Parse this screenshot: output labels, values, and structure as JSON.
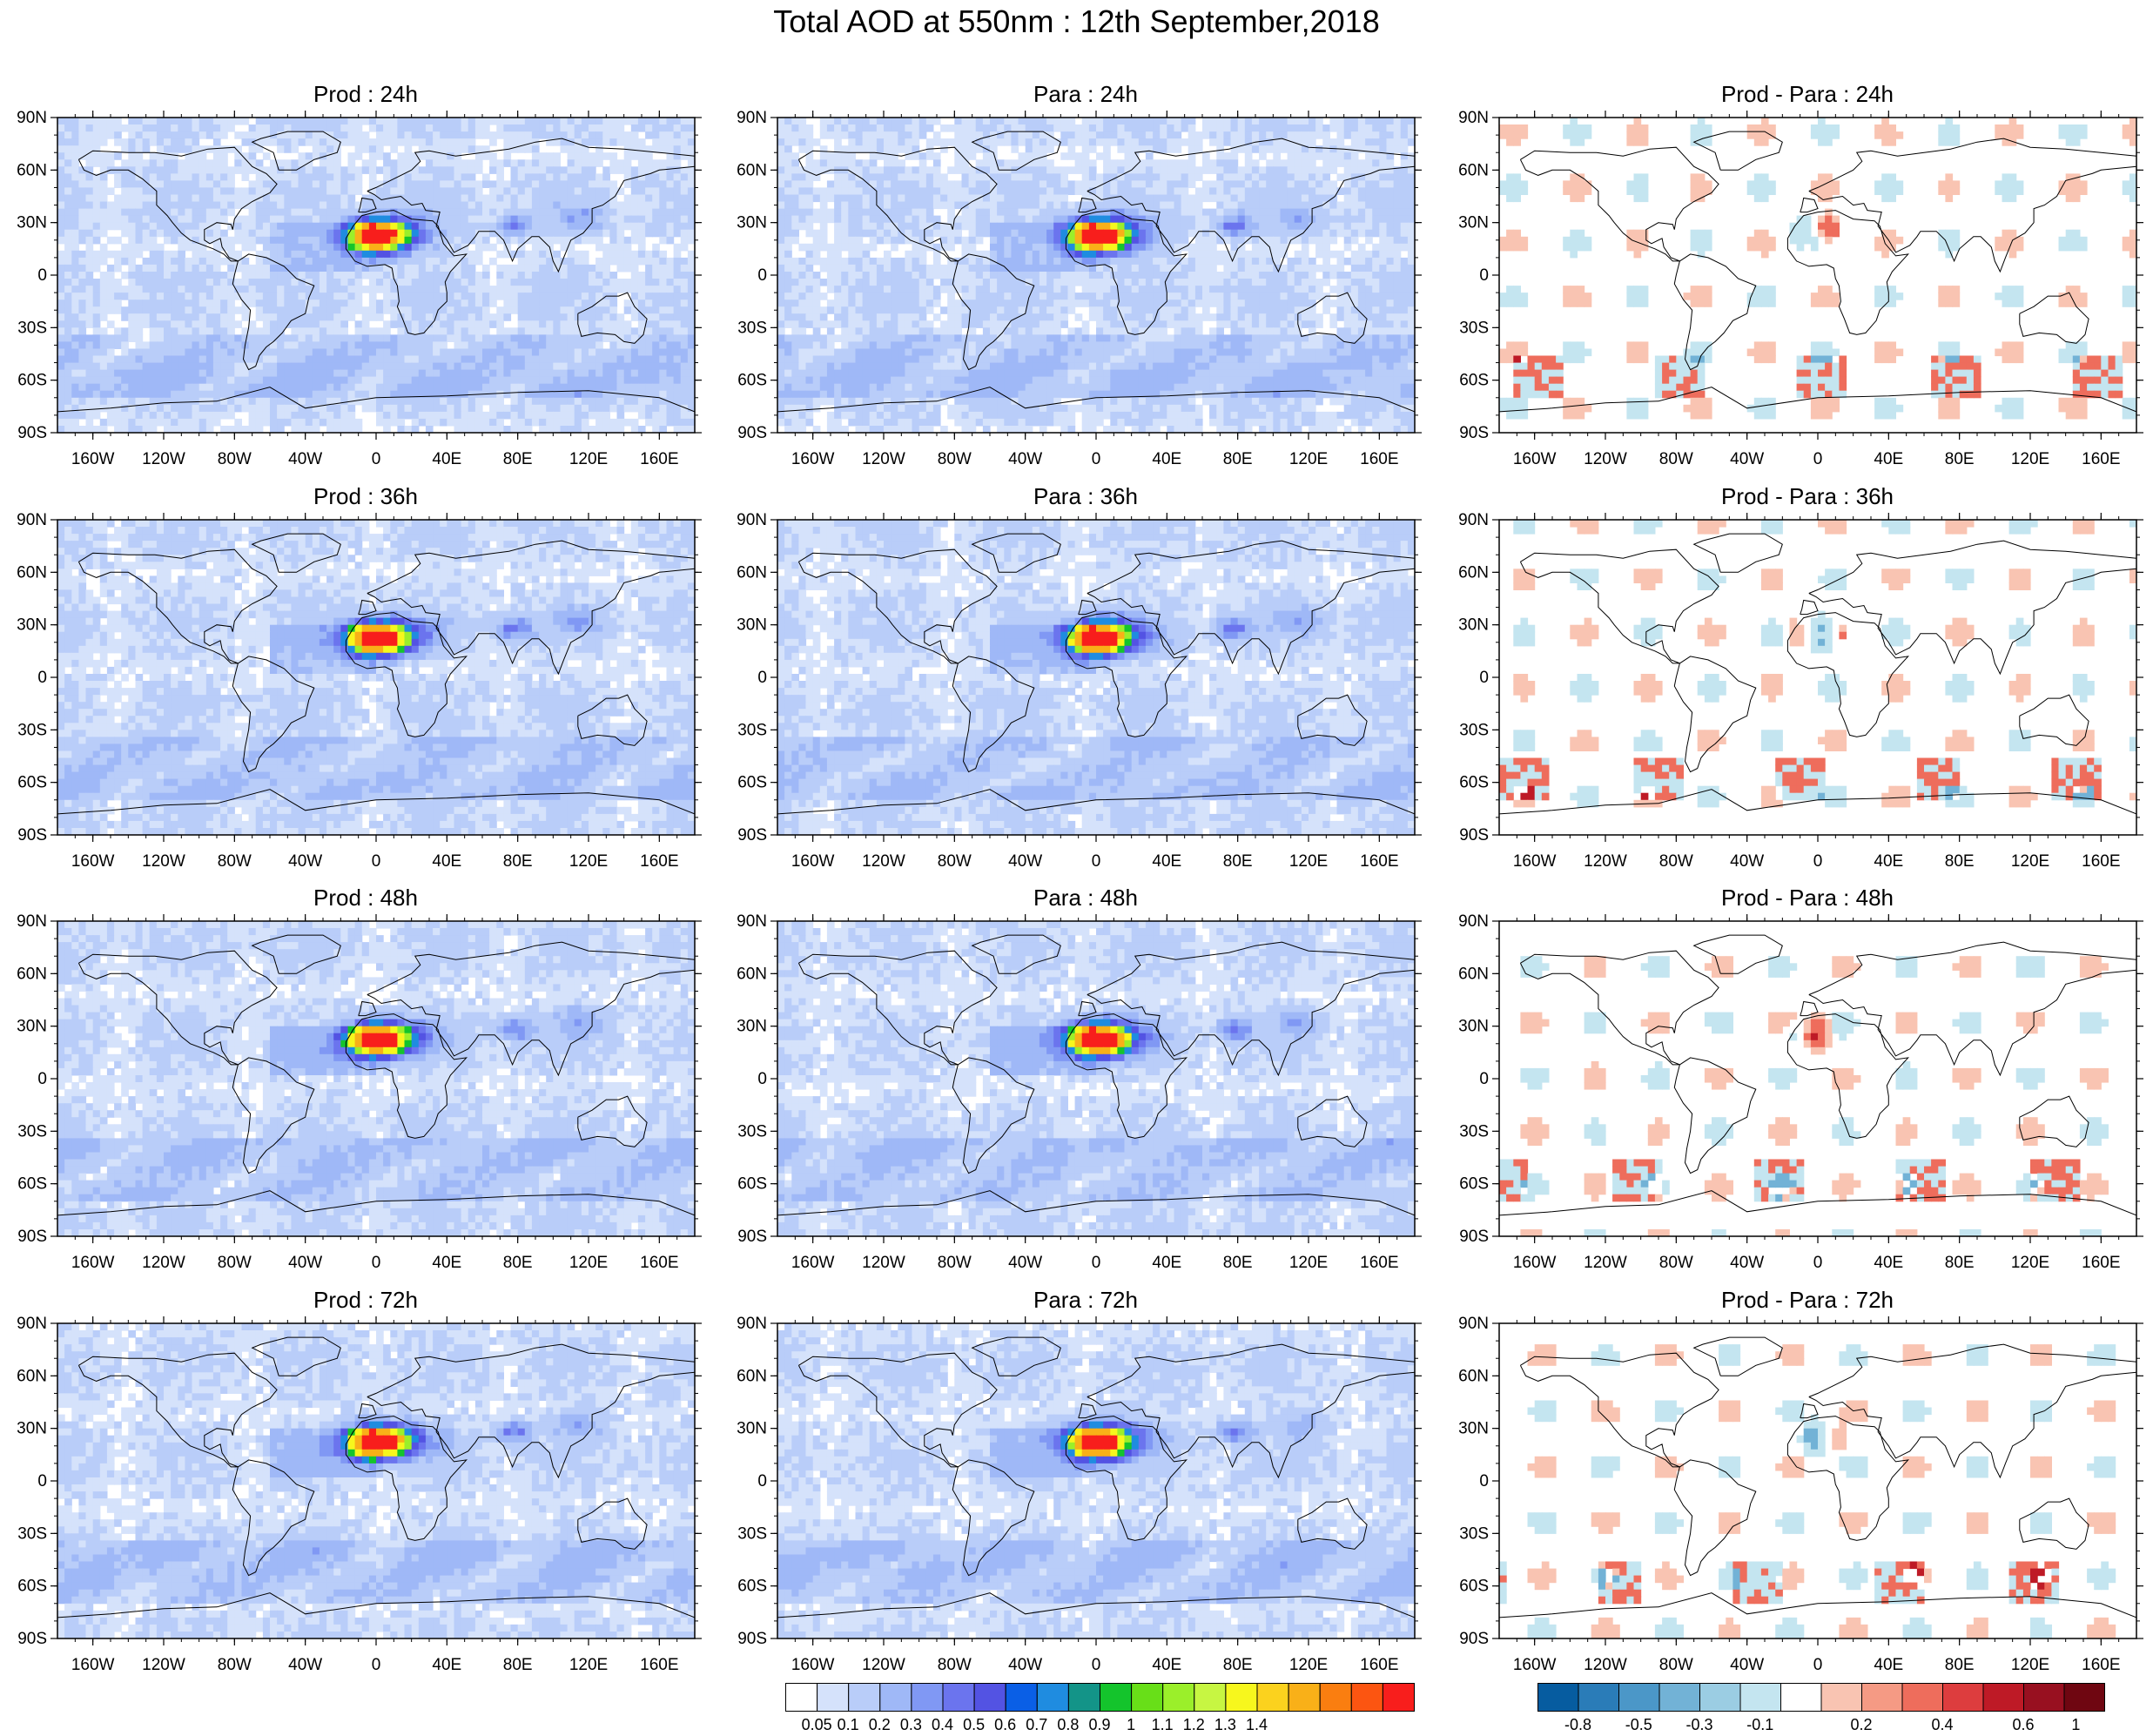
{
  "title": "Total AOD at 550nm : 12th September,2018",
  "panels": [
    {
      "title": "Prod : 24h",
      "kind": "aod",
      "seed": 11
    },
    {
      "title": "Para : 24h",
      "kind": "aod",
      "seed": 12
    },
    {
      "title": "Prod - Para : 24h",
      "kind": "diff",
      "seed": 13
    },
    {
      "title": "Prod : 36h",
      "kind": "aod",
      "seed": 21
    },
    {
      "title": "Para : 36h",
      "kind": "aod",
      "seed": 22
    },
    {
      "title": "Prod - Para : 36h",
      "kind": "diff",
      "seed": 23
    },
    {
      "title": "Prod : 48h",
      "kind": "aod",
      "seed": 31
    },
    {
      "title": "Para : 48h",
      "kind": "aod",
      "seed": 32
    },
    {
      "title": "Prod - Para : 48h",
      "kind": "diff",
      "seed": 33
    },
    {
      "title": "Prod : 72h",
      "kind": "aod",
      "seed": 41
    },
    {
      "title": "Para : 72h",
      "kind": "aod",
      "seed": 42
    },
    {
      "title": "Prod - Para : 72h",
      "kind": "diff",
      "seed": 43
    }
  ],
  "lat_labels": [
    "90N",
    "60N",
    "30N",
    "0",
    "30S",
    "60S",
    "90S"
  ],
  "lon_labels": [
    "160W",
    "120W",
    "80W",
    "40W",
    "0",
    "40E",
    "80E",
    "120E",
    "160E"
  ],
  "aod_colorbar": {
    "colors": [
      "#ffffff",
      "#d5e2fb",
      "#b9cdf9",
      "#9fb8f7",
      "#8098f4",
      "#6b74ee",
      "#5353e3",
      "#0a5fe6",
      "#1f8ce0",
      "#139488",
      "#14c42c",
      "#68df18",
      "#9bef2a",
      "#c7f642",
      "#f7f71d",
      "#fbd21e",
      "#f9b018",
      "#fa7e10",
      "#fc5511",
      "#f81e1c"
    ],
    "labels": [
      "0.05",
      "0.1",
      "0.2",
      "0.3",
      "0.4",
      "0.5",
      "0.6",
      "0.7",
      "0.8",
      "0.9",
      "1",
      "1.1",
      "1.2",
      "1.3",
      "1.4"
    ]
  },
  "diff_colorbar": {
    "colors": [
      "#065ca0",
      "#2a7cb8",
      "#4b97c8",
      "#72b2d6",
      "#9bcde3",
      "#c4e5f0",
      "#ffffff",
      "#f9c4b2",
      "#f59a84",
      "#ee6d5c",
      "#dd3d3e",
      "#be1a26",
      "#981020",
      "#6f0611"
    ],
    "labels": [
      "-0.8",
      "-0.5",
      "-0.3",
      "-0.1",
      "0.2",
      "0.4",
      "0.6",
      "1"
    ]
  }
}
